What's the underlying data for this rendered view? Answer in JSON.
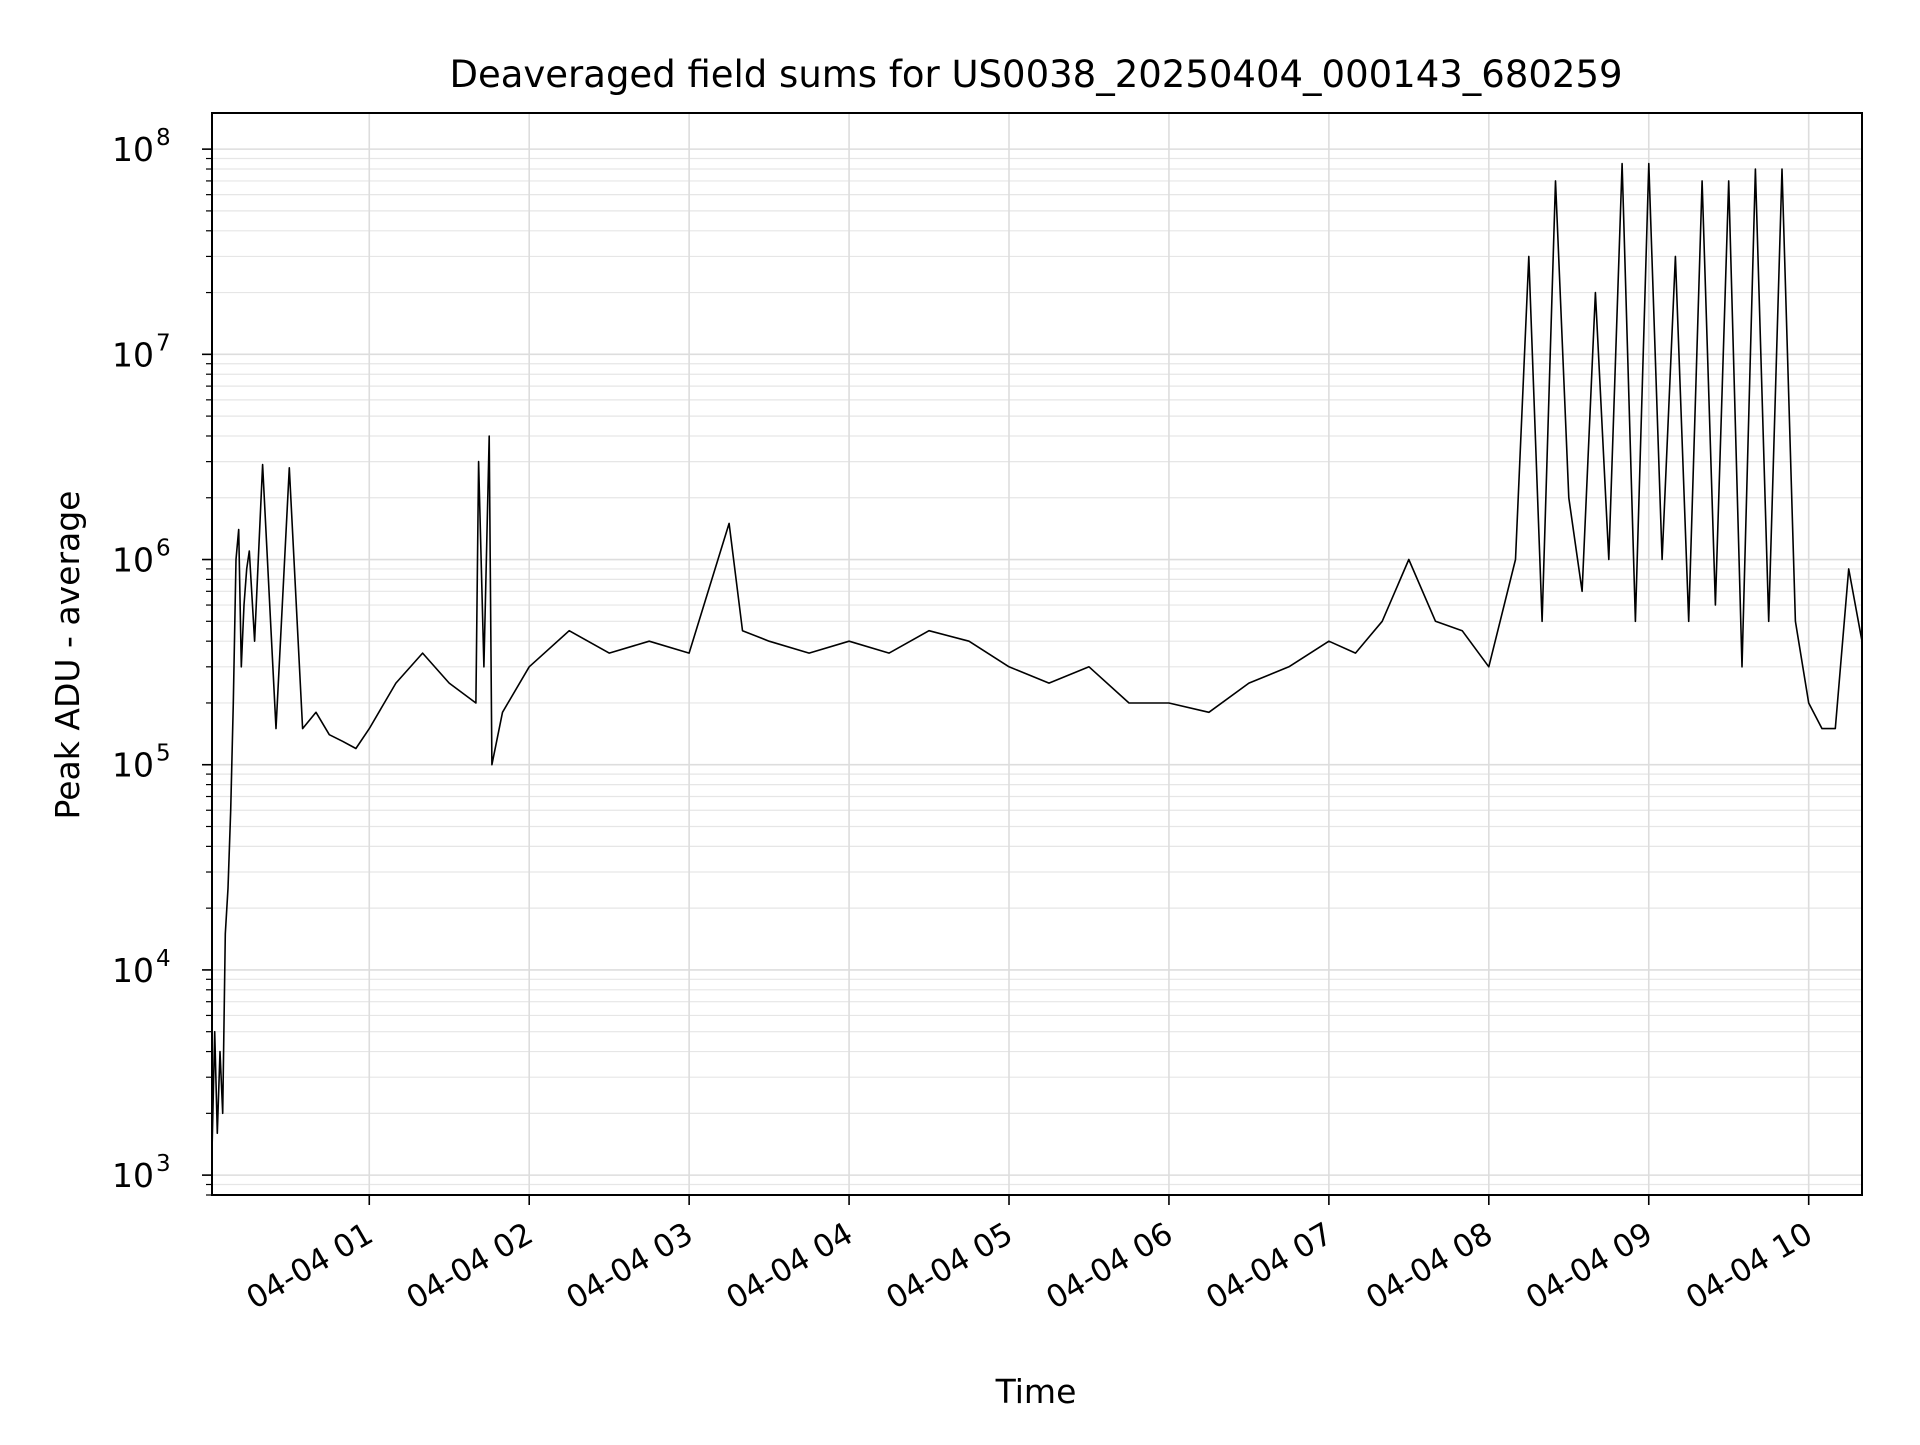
{
  "chart_data": {
    "type": "line",
    "title": "Deaveraged field sums for US0038_20250404_000143_680259",
    "xlabel": "Time",
    "ylabel": "Peak ADU - average",
    "yscale": "log",
    "ylim": [
      800,
      150000000
    ],
    "xlim": [
      "04-04 00:01",
      "04-04 10:20"
    ],
    "grid": "on (major and minor)",
    "x_ticks": [
      "04-04 01",
      "04-04 02",
      "04-04 03",
      "04-04 04",
      "04-04 05",
      "04-04 06",
      "04-04 07",
      "04-04 08",
      "04-04 09",
      "04-04 10"
    ],
    "y_ticks": [
      {
        "value": 1000,
        "base": "10",
        "exp": "3"
      },
      {
        "value": 10000,
        "base": "10",
        "exp": "4"
      },
      {
        "value": 100000,
        "base": "10",
        "exp": "5"
      },
      {
        "value": 1000000,
        "base": "10",
        "exp": "6"
      },
      {
        "value": 10000000,
        "base": "10",
        "exp": "7"
      },
      {
        "value": 100000000,
        "base": "10",
        "exp": "8"
      }
    ],
    "series": [
      {
        "color": "#000000",
        "x": [
          "04-04 00:01",
          "04-04 00:02",
          "04-04 00:03",
          "04-04 00:04",
          "04-04 00:05",
          "04-04 00:06",
          "04-04 00:07",
          "04-04 00:08",
          "04-04 00:09",
          "04-04 00:10",
          "04-04 00:11",
          "04-04 00:12",
          "04-04 00:13",
          "04-04 00:14",
          "04-04 00:15",
          "04-04 00:17",
          "04-04 00:20",
          "04-04 00:25",
          "04-04 00:30",
          "04-04 00:35",
          "04-04 00:40",
          "04-04 00:45",
          "04-04 00:50",
          "04-04 00:55",
          "04-04 01:00",
          "04-04 01:10",
          "04-04 01:20",
          "04-04 01:30",
          "04-04 01:40",
          "04-04 01:41",
          "04-04 01:43",
          "04-04 01:45",
          "04-04 01:46",
          "04-04 01:50",
          "04-04 02:00",
          "04-04 02:15",
          "04-04 02:30",
          "04-04 02:45",
          "04-04 03:00",
          "04-04 03:15",
          "04-04 03:20",
          "04-04 03:30",
          "04-04 03:45",
          "04-04 04:00",
          "04-04 04:15",
          "04-04 04:30",
          "04-04 04:45",
          "04-04 05:00",
          "04-04 05:15",
          "04-04 05:30",
          "04-04 05:45",
          "04-04 06:00",
          "04-04 06:15",
          "04-04 06:30",
          "04-04 06:45",
          "04-04 07:00",
          "04-04 07:10",
          "04-04 07:20",
          "04-04 07:30",
          "04-04 07:40",
          "04-04 07:50",
          "04-04 08:00",
          "04-04 08:10",
          "04-04 08:15",
          "04-04 08:20",
          "04-04 08:25",
          "04-04 08:30",
          "04-04 08:35",
          "04-04 08:40",
          "04-04 08:45",
          "04-04 08:50",
          "04-04 08:55",
          "04-04 09:00",
          "04-04 09:05",
          "04-04 09:10",
          "04-04 09:15",
          "04-04 09:20",
          "04-04 09:25",
          "04-04 09:30",
          "04-04 09:35",
          "04-04 09:40",
          "04-04 09:45",
          "04-04 09:50",
          "04-04 09:55",
          "04-04 10:00",
          "04-04 10:05",
          "04-04 10:10",
          "04-04 10:15",
          "04-04 10:20"
        ],
        "y": [
          1300,
          5000,
          1600,
          4000,
          2000,
          15000,
          25000,
          60000,
          200000,
          1000000,
          1400000,
          300000,
          600000,
          900000,
          1100000,
          400000,
          2900000,
          150000,
          2800000,
          150000,
          180000,
          140000,
          130000,
          120000,
          150000,
          250000,
          350000,
          250000,
          200000,
          3000000,
          300000,
          4000000,
          100000,
          180000,
          300000,
          450000,
          350000,
          400000,
          350000,
          1500000,
          450000,
          400000,
          350000,
          400000,
          350000,
          450000,
          400000,
          300000,
          250000,
          300000,
          200000,
          200000,
          180000,
          250000,
          300000,
          400000,
          350000,
          500000,
          1000000,
          500000,
          450000,
          300000,
          1000000,
          30000000,
          500000,
          70000000,
          2000000,
          700000,
          20000000,
          1000000,
          85000000,
          500000,
          85000000,
          1000000,
          30000000,
          500000,
          70000000,
          600000,
          70000000,
          300000,
          80000000,
          500000,
          80000000,
          500000,
          200000,
          150000,
          150000,
          900000,
          400000
        ]
      }
    ]
  }
}
